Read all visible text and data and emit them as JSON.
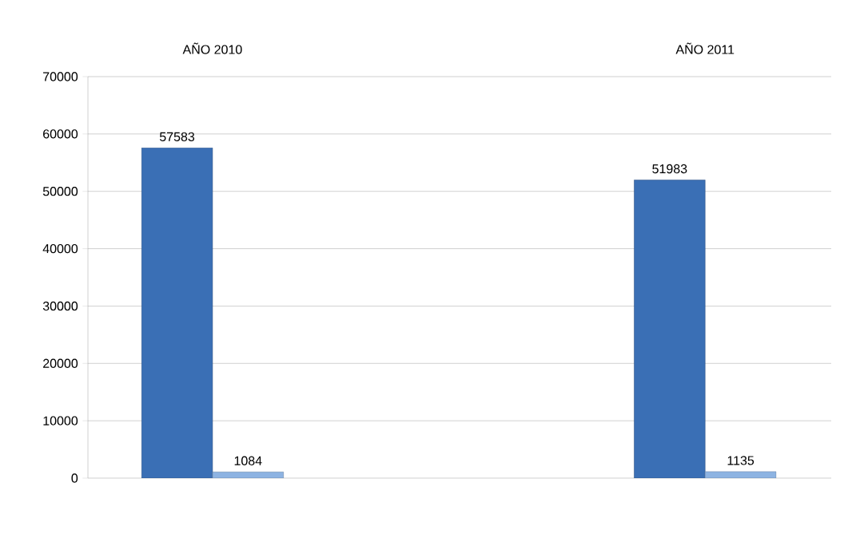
{
  "chart_data": {
    "type": "bar",
    "categories": [
      "AÑO 2010",
      "AÑO 2011"
    ],
    "series": [
      {
        "color": "#3a6fb5",
        "values": [
          57583,
          51983
        ]
      },
      {
        "color": "#8db3e2",
        "values": [
          1084,
          1135
        ]
      }
    ],
    "ylim": [
      0,
      70000
    ],
    "yticks": [
      0,
      10000,
      20000,
      30000,
      40000,
      50000,
      60000,
      70000
    ],
    "grid": "y",
    "data_labels": true
  }
}
